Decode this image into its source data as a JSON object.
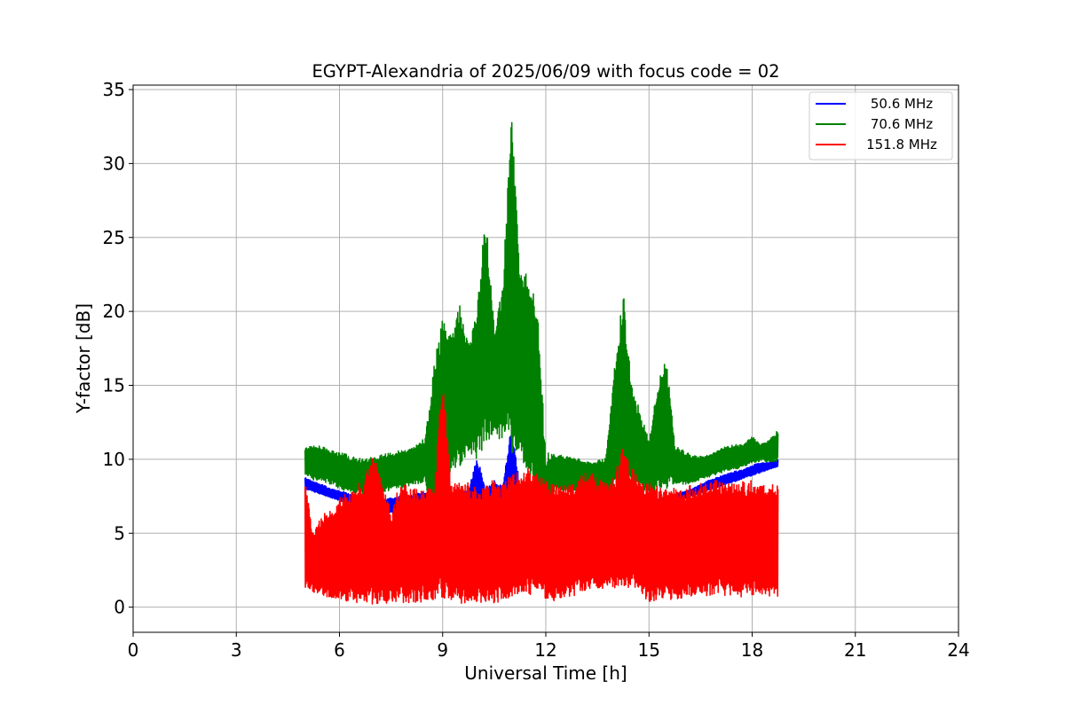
{
  "chart_data": {
    "type": "line",
    "title": "EGYPT-Alexandria of 2025/06/09 with focus code = 02",
    "xlabel": "Universal Time [h]",
    "ylabel": "Y-factor [dB]",
    "xlim": [
      0,
      24
    ],
    "ylim": [
      -1.7,
      35.3
    ],
    "xticks": [
      0,
      3,
      6,
      9,
      12,
      15,
      18,
      21,
      24
    ],
    "yticks": [
      0,
      5,
      10,
      15,
      20,
      25,
      30,
      35
    ],
    "grid": true,
    "legend_position": "upper right",
    "series": [
      {
        "name": "50.6 MHz",
        "color": "#0000ff",
        "x": [
          5.0,
          5.25,
          5.5,
          5.75,
          6.0,
          6.25,
          6.5,
          6.75,
          7.0,
          7.25,
          7.5,
          7.75,
          8.0,
          8.25,
          8.5,
          8.75,
          9.0,
          9.25,
          9.5,
          9.75,
          10.0,
          10.25,
          10.5,
          10.75,
          11.0,
          11.25,
          11.5,
          11.75,
          12.0,
          12.25,
          12.5,
          12.75,
          13.0,
          13.25,
          13.5,
          13.75,
          14.0,
          14.25,
          14.5,
          14.75,
          15.0,
          15.25,
          15.5,
          15.75,
          16.0,
          16.25,
          16.5,
          16.75,
          17.0,
          17.25,
          17.5,
          17.75,
          18.0,
          18.25,
          18.5,
          18.75
        ],
        "upper": [
          8.8,
          8.5,
          8.3,
          8.0,
          7.9,
          7.7,
          7.5,
          7.6,
          7.3,
          7.3,
          7.4,
          7.5,
          7.6,
          7.7,
          7.8,
          7.8,
          7.9,
          7.8,
          8.0,
          7.8,
          10.3,
          7.9,
          8.6,
          8.2,
          12.5,
          8.1,
          7.9,
          7.8,
          7.6,
          7.5,
          7.4,
          7.3,
          7.3,
          7.3,
          7.2,
          7.3,
          7.3,
          7.4,
          7.6,
          7.5,
          7.3,
          7.3,
          7.5,
          7.6,
          7.8,
          8.0,
          8.3,
          8.6,
          8.8,
          9.0,
          9.2,
          9.3,
          9.6,
          9.8,
          9.8,
          10.0
        ],
        "lower": [
          8.0,
          7.8,
          7.6,
          7.4,
          7.2,
          7.0,
          6.8,
          6.6,
          6.4,
          6.4,
          6.4,
          6.4,
          6.4,
          6.4,
          6.5,
          6.4,
          6.5,
          6.4,
          6.4,
          6.4,
          6.3,
          6.3,
          6.4,
          6.4,
          6.5,
          6.5,
          6.5,
          6.5,
          6.5,
          6.5,
          6.4,
          6.4,
          6.4,
          6.3,
          6.3,
          6.2,
          6.3,
          6.5,
          6.6,
          6.7,
          6.8,
          6.9,
          7.0,
          7.1,
          7.3,
          7.5,
          7.7,
          7.9,
          8.1,
          8.3,
          8.5,
          8.7,
          8.9,
          9.1,
          9.3,
          9.5
        ]
      },
      {
        "name": "70.6 MHz",
        "color": "#008000",
        "x": [
          5.0,
          5.25,
          5.5,
          5.75,
          6.0,
          6.25,
          6.5,
          6.75,
          7.0,
          7.25,
          7.5,
          7.75,
          8.0,
          8.25,
          8.5,
          8.75,
          9.0,
          9.25,
          9.5,
          9.75,
          10.0,
          10.25,
          10.5,
          10.75,
          11.0,
          11.25,
          11.5,
          11.75,
          12.0,
          12.25,
          12.5,
          12.75,
          13.0,
          13.25,
          13.5,
          13.75,
          14.0,
          14.25,
          14.5,
          14.75,
          15.0,
          15.25,
          15.5,
          15.75,
          16.0,
          16.25,
          16.5,
          16.75,
          17.0,
          17.25,
          17.5,
          17.75,
          18.0,
          18.25,
          18.5,
          18.75
        ],
        "upper": [
          10.8,
          10.9,
          10.9,
          10.7,
          10.5,
          10.3,
          10.1,
          10.0,
          10.2,
          10.3,
          10.5,
          10.6,
          10.7,
          11.0,
          11.5,
          16.5,
          19.5,
          18.5,
          20.5,
          18.0,
          20.0,
          26.8,
          19.0,
          22.0,
          33.6,
          23.0,
          22.5,
          20.5,
          10.5,
          10.4,
          10.3,
          10.2,
          10.0,
          9.8,
          9.9,
          10.1,
          16.2,
          21.5,
          15.0,
          13.2,
          11.3,
          15.0,
          17.1,
          11.0,
          10.6,
          10.3,
          10.2,
          10.3,
          10.6,
          10.9,
          11.0,
          11.0,
          11.6,
          11.0,
          11.3,
          12.0
        ],
        "lower": [
          8.9,
          8.6,
          8.5,
          8.3,
          8.0,
          7.8,
          7.6,
          7.6,
          7.7,
          7.8,
          7.9,
          8.0,
          8.1,
          8.3,
          8.5,
          3.0,
          9.8,
          9.0,
          9.5,
          10.2,
          10.0,
          11.0,
          11.8,
          11.0,
          10.5,
          10.0,
          9.2,
          7.0,
          0.1,
          7.8,
          7.8,
          7.8,
          7.6,
          7.5,
          7.6,
          7.7,
          7.8,
          7.9,
          7.9,
          7.9,
          7.8,
          7.9,
          8.0,
          8.1,
          8.3,
          8.4,
          8.6,
          8.8,
          9.0,
          9.2,
          9.3,
          9.5,
          9.7,
          9.9,
          9.8,
          9.9
        ]
      },
      {
        "name": "151.8 MHz",
        "color": "#ff0000",
        "x": [
          5.0,
          5.25,
          5.5,
          5.75,
          6.0,
          6.25,
          6.5,
          6.75,
          7.0,
          7.25,
          7.5,
          7.75,
          8.0,
          8.25,
          8.5,
          8.75,
          9.0,
          9.25,
          9.5,
          9.75,
          10.0,
          10.25,
          10.5,
          10.75,
          11.0,
          11.25,
          11.5,
          11.75,
          12.0,
          12.25,
          12.5,
          12.75,
          13.0,
          13.25,
          13.5,
          13.75,
          14.0,
          14.25,
          14.5,
          14.75,
          15.0,
          15.25,
          15.5,
          15.75,
          16.0,
          16.25,
          16.5,
          16.75,
          17.0,
          17.25,
          17.5,
          17.75,
          18.0,
          18.25,
          18.5,
          18.75
        ],
        "upper": [
          8.4,
          5.0,
          6.3,
          6.6,
          7.4,
          7.8,
          8.2,
          8.9,
          10.3,
          8.6,
          6.5,
          8.4,
          8.3,
          8.2,
          8.0,
          8.2,
          16.0,
          8.4,
          8.6,
          8.4,
          8.2,
          8.1,
          8.8,
          8.3,
          9.4,
          9.0,
          9.5,
          9.0,
          8.6,
          8.2,
          8.5,
          8.3,
          9.0,
          9.2,
          8.7,
          8.5,
          9.0,
          10.8,
          9.5,
          8.5,
          8.4,
          8.2,
          8.0,
          8.1,
          8.2,
          8.3,
          8.4,
          8.5,
          8.6,
          8.4,
          8.6,
          8.5,
          8.6,
          8.2,
          8.4,
          8.5
        ],
        "lower": [
          1.2,
          1.0,
          0.8,
          0.6,
          0.5,
          0.4,
          0.3,
          0.2,
          0.1,
          0.2,
          0.2,
          0.3,
          0.3,
          0.3,
          0.4,
          0.2,
          0.3,
          0.3,
          0.2,
          0.3,
          0.3,
          0.3,
          0.2,
          0.5,
          0.7,
          1.0,
          0.8,
          0.7,
          0.5,
          0.4,
          0.5,
          0.6,
          1.0,
          1.1,
          1.2,
          1.2,
          1.2,
          1.3,
          1.2,
          1.0,
          0.1,
          0.4,
          0.5,
          0.5,
          0.6,
          0.6,
          0.7,
          0.8,
          0.8,
          0.8,
          0.7,
          0.7,
          0.8,
          0.6,
          0.7,
          0.7
        ]
      }
    ]
  }
}
